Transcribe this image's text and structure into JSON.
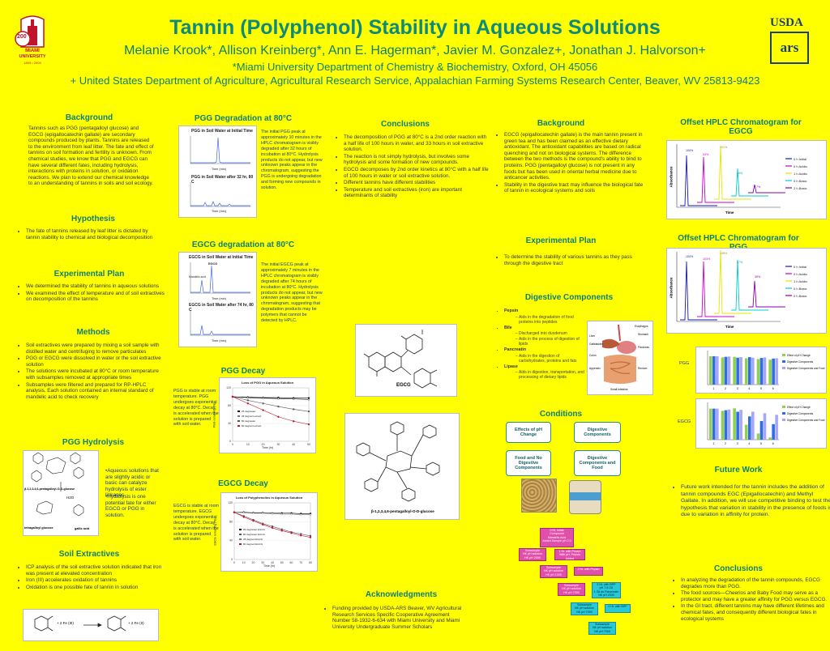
{
  "header": {
    "title": "Tannin (Polyphenol) Stability in Aqueous Solutions",
    "authors": "Melanie Krook*, Allison Kreinberg*, Ann E. Hagerman*, Javier M. Gonzalez+, Jonathan J. Halvorson+",
    "affiliation1": "*Miami University Department of Chemistry & Biochemistry, Oxford, OH   45056",
    "affiliation2": "+ United States Department of Agriculture, Agricultural Research Service, Appalachian Farming Systems Research Center, Beaver, WV 25813-9423",
    "left_logo": {
      "line1": "200",
      "line2": "MIAMI",
      "line3": "UNIVERSITY",
      "line4": "1809 • 2009"
    },
    "right_logo": {
      "top": "USDA",
      "bottom": "ars"
    }
  },
  "col1": {
    "background": {
      "heading": "Background",
      "text": "Tannins such as PGG (pentagalloyl glucose) and EGCG (epigallocatechin gallate) are secondary compounds produced by plants. Tannins are released to the environment from leaf litter.  The fate and effect of tannins on soil formation and fertility is unknown.  From chemical studies, we know that PGG and EGCG can have several different fates, including hydrolysis, interactions with proteins in solution, or oxidation reactions.  We plan to extend our chemical knowledge to an understanding of tannins in soils and soil ecology."
    },
    "hypothesis": {
      "heading": "Hypothesis",
      "bullets": [
        "The fate of tannins released by leaf litter is dictated by tannin stability to chemical and biological decomposition"
      ]
    },
    "experimental": {
      "heading": "Experimental Plan",
      "bullets": [
        "We determined the stability of tannins in aqueous solutions",
        "We examined the effect of temperature and of soil extractives on decomposition of the tannins"
      ]
    },
    "methods": {
      "heading": "Methods",
      "bullets": [
        "Soil extractives were prepared by mixing a soil sample with distilled water and centrifuging to remove particulates",
        "PGG or EGCG were dissolved in water or the soil extractive solution",
        "The solutions were incubated at 80°C or room temperature with subsamples removed at appropriate times",
        "Subsamples were filtered and prepared for RP-HPLC analysis.  Each solution contained an internal standard of mandelic acid to check recovery"
      ]
    },
    "hydrolysis": {
      "heading": "PGG  Hydrolysis",
      "label_pgg": "β-1,2,3,4,6-pentagalloyl-O-D-glucose",
      "label_h2o": "H2O",
      "label_glucose": "tetragalloyl glucose",
      "label_gallic": "gallic acid",
      "notes": [
        "•Aqueous solutions that are slightly acidic or basic can catalyze hydrolysis of ester linkages",
        "•Hydrolysis is one potential fate for either EGCG or PGG in solution."
      ]
    },
    "soil": {
      "heading": "Soil Extractives",
      "bullets": [
        "ICP analysis of the soil extractive solution indicated that iron was present at elevated concentration",
        "Iron (III) accelerates oxidation of tannins",
        "Oxidation is one possible fate of tannin in solution"
      ],
      "reaction_left": "+ 2 Fe (III)",
      "reaction_right": "+ 2 Fe (II)"
    }
  },
  "col2": {
    "pgg_degradation": {
      "heading": "PGG Degradation at 80°C",
      "fig_top_title": "PGG in Soil Water at Initial Time",
      "fig_bottom_title": "PGG in Soil Water after 32 hr, 80 C",
      "axis_time": "Time (min)",
      "text": "The initial PGG peak at approximately 10 minutes in the HPLC chromatogram is visibly degraded after 32 hours of incubation at 80°C. Hydrolysis products do not appear, but new unknown peaks appear in the chromatogram, suggesting the PGG is undergoing degradation and forming new compounds in solution."
    },
    "egcg_degradation": {
      "heading": "EGCG degradation at 80°C",
      "fig_top_title": "EGCG in Soil Water at Initial Time",
      "fig_bottom_title": "EGCG in Soil Water after 74 hr, 80 C",
      "peak_egcg": "EGCG",
      "peak_std": "Mandelic acid",
      "axis_time": "Time (min)",
      "text": "The initial EGCG peak at approximately 7 minutes in the HPLC chromatogram is visibly degraded after 74 hours of incubation at 80°C. Hydrolysis products do not appear, but new unknown peaks appear in the chromatogram, suggesting that degradation products may be polymers that cannot be detected by HPLC."
    },
    "pgg_decay": {
      "heading": "PGG Decay",
      "text": "PGG is stable at room temperature. PGG undergoes exponential decay at 80°C.  Decay is accelerated when the solution is prepared with soil water.",
      "chart_title": "Loss of PGG in Aqueous Solution",
      "ylabel": "PGG remaining (%)",
      "xlabel": "Time (hr)",
      "legend": [
        "25 deg/water",
        "25 deg/soil extract",
        "80 deg/water",
        "80 deg/soil extract"
      ]
    },
    "egcg_decay": {
      "heading": "EGCG Decay",
      "text": "EGCG is stable at room temperature. EGCG undergoes exponential decay at 80°C.  Decay is accelerated when the solution is prepared with soil water.",
      "chart_title": "Loss of Polyphenolics in Aqueous Solution",
      "ylabel": "EGCG remaining (%)",
      "xlabel": "Time (hr)",
      "legend": [
        "25 deg/water EGCG",
        "80 deg/water EGCG",
        "25 deg/soil EGCG",
        "80 deg/soil EGCG"
      ]
    }
  },
  "col3": {
    "conclusions": {
      "heading": "Conclusions",
      "bullets": [
        "The decomposition of PGG at 80°C is a 2nd order reaction with a half life of 100 hours in water, and 33 hours in soil extractive solution.",
        "The reaction is not simply hydrolysis, but involves some hydrolysis and some formation of new compounds.",
        "EGCG decomposes by 2nd order kinetics at 80°C with a half life of 100 hours in water or soil extractive solution.",
        "Different tannins have different stabilities",
        "Temperature and soil extractives (iron) are important determinants of stability"
      ]
    },
    "egcg_label": "EGCG",
    "pgg_label": "β-1,2,3,4,6-pentagalloyl-O-D-glucose",
    "ack": {
      "heading": "Acknowledgments",
      "bullets": [
        "Funding provided by USDA-ARS Beaver, WV Agricultural Research Services Specific Cooperative Agreement Number 58-1932-6-634 with Miami University and Miami University Undergraduate Summer Scholars"
      ]
    }
  },
  "col4": {
    "background": {
      "heading": "Background",
      "bullets": [
        "EGCG (epigallocatechin gallate) is the main tannin present in green tea and has been claimed as an effective dietary antioxidant.   The antioxidant capabilities are based on radical quenching  and not on biological systems.  The difference between the two methods is the compound's ability to bind to proteins.  PGG (pentagalloyl glucose) is not present in any foods but has been used in oriental herbal medicine due to anticancer activities.",
        "Stability in the digestive tract may influence the biological fate of tannin in ecological systems and soils"
      ]
    },
    "experimental": {
      "heading": "Experimental Plan",
      "bullets": [
        "To determine the stability of various tannins as they pass through the digestive tract"
      ]
    },
    "digestive": {
      "heading": "Digestive Components",
      "items": [
        {
          "name": "Pepsin",
          "subs": [
            "Aids in the degradation of food proteins into peptides"
          ]
        },
        {
          "name": "Bile",
          "subs": [
            "Discharged into duodenum",
            "Aids in the process of digestion of lipids"
          ]
        },
        {
          "name": "Pancreatin",
          "subs": [
            "Aids in the digestion of carbohydrates, proteins and fats"
          ]
        },
        {
          "name": "Lipase",
          "subs": [
            "Aids in digestion, transportation, and processing of dietary lipids"
          ]
        }
      ],
      "organs": [
        "Esophagus",
        "Liver",
        "Stomach",
        "Gallbladder",
        "Pancreas",
        "Colon",
        "Appendix",
        "Rectum",
        "Small Intestine"
      ]
    },
    "conditions": {
      "heading": "Conditions",
      "boxes": [
        "Effects of pH Change",
        "Digestive Components",
        "Food and No Digestive Components",
        "Digestive Components and Food"
      ]
    },
    "flow": {
      "top": [
        "0 Hr, Initial",
        "Compound",
        "Mandelic Acid",
        "Added Sample pH 2.0"
      ],
      "row2_left": [
        "Subsample",
        "HK pH solution",
        "HK pH 2000"
      ],
      "row2_right": [
        "1 Hr. with Pepsin",
        "With pH, Pepsin Added"
      ],
      "row3_left": [
        "Subsample",
        "NK pH solution",
        "HK pH 1000"
      ],
      "row3_right": [
        "2 Hr. with Pepsin"
      ],
      "row4_left": [
        "Subsample",
        "HK pH solution",
        "HK pH 7000"
      ],
      "row4_right": [
        "3 Hr. with BPP",
        "pH 7.5 OK",
        "1 Gk as Pancreatin",
        "NK pH 2000"
      ],
      "row5_left": [
        "Subsample",
        "NK pH solution",
        "NK pH 7000"
      ],
      "row5_right": [
        "4 Hr. with BPP"
      ],
      "row6": [
        "Subsample",
        "NK pH solution",
        "NK pH 7000"
      ]
    }
  },
  "col5": {
    "offset_egcg": {
      "heading": "Offset HPLC Chromatogram for EGCG",
      "ylabel": "Absorbance",
      "xlabel": "Time",
      "peaks": [
        "100%",
        "93%",
        "101%",
        "48%",
        "7%"
      ]
    },
    "offset_pgg": {
      "heading": "Offset HPLC Chromatogram for PGG",
      "ylabel": "Absorbance",
      "xlabel": "Time",
      "peaks": [
        "100%",
        "103%",
        "108%",
        "87%",
        "39%"
      ]
    },
    "legend": [
      "0 h Initial",
      "0 h Acidic",
      "1 h Acidic",
      "0 h Basic",
      "2 h Basic"
    ],
    "series_colors": [
      "#1a1aa6",
      "#cc00cc",
      "#e6e600",
      "#00cccc",
      "#8800aa"
    ],
    "bar_label_pgg": "PGG",
    "bar_label_egcg": "EGCG",
    "bar_legend": [
      "Effect of pH Change",
      "Digestive Components",
      "Digestive Components and Food"
    ],
    "bar_colors": [
      "#8fd14f",
      "#2f6de8",
      "#a6a6ff"
    ],
    "future": {
      "heading": "Future Work",
      "bullets": [
        "Future work intended for the tannin includes the addition of tannin compounds EGC (Epigallocatechin) and Methyl Gallate. In addition, we will use competitive binding to test the hypothesis that variation in stability in the presence of foods is due to variation in affinity for protein."
      ]
    },
    "conclusions": {
      "heading": "Conclusions",
      "bullets": [
        "In analyzing the degradation of the tannin compounds, EGCG degrades more than PGG.",
        "The food sources—Cheerios and Baby Food may serve as a protector and may have a greater affinity for PGG versus EGCG.",
        "In the GI tract, different tannins may have different lifetimes and chemical fates, and consequently different biological fates in ecological systems"
      ]
    }
  },
  "chart_data": [
    {
      "type": "line",
      "title": "Loss of PGG in Aqueous Solution",
      "xlabel": "Time (hr)",
      "ylabel": "PGG remaining (%)",
      "x": [
        0,
        10,
        20,
        30,
        40,
        50
      ],
      "ylim": [
        0,
        120
      ],
      "series": [
        {
          "name": "25 deg/water",
          "values": [
            100,
            99,
            98,
            98,
            97,
            97
          ]
        },
        {
          "name": "25 deg/soil extract",
          "values": [
            100,
            98,
            97,
            96,
            95,
            94
          ]
        },
        {
          "name": "80 deg/water",
          "values": [
            100,
            92,
            85,
            78,
            72,
            67
          ]
        },
        {
          "name": "80 deg/soil extract",
          "values": [
            100,
            85,
            70,
            55,
            45,
            38
          ]
        }
      ]
    },
    {
      "type": "line",
      "title": "Loss of Polyphenolics in Aqueous Solution",
      "xlabel": "Time (hr)",
      "ylabel": "EGCG remaining (%)",
      "x": [
        0,
        10,
        20,
        30,
        40,
        50,
        60,
        70,
        80
      ],
      "ylim": [
        0,
        120
      ],
      "series": [
        {
          "name": "25 deg/water EGCG",
          "values": [
            100,
            100,
            99,
            99,
            98,
            98,
            98,
            97,
            97
          ]
        },
        {
          "name": "80 deg/water EGCG",
          "values": [
            100,
            92,
            84,
            76,
            70,
            64,
            58,
            54,
            50
          ]
        },
        {
          "name": "25 deg/soil EGCG",
          "values": [
            100,
            99,
            98,
            98,
            97,
            96,
            96,
            95,
            95
          ]
        },
        {
          "name": "80 deg/soil EGCG",
          "values": [
            100,
            90,
            82,
            74,
            67,
            61,
            56,
            51,
            47
          ]
        }
      ]
    },
    {
      "type": "bar",
      "title": "",
      "ylabel": "% remaining",
      "categories": [
        "1",
        "2",
        "3",
        "4",
        "5",
        "6"
      ],
      "ylim": [
        0,
        120
      ],
      "series": [
        {
          "name": "Effect of pH Change",
          "values": [
            100,
            96,
            98,
            93,
            90,
            88
          ]
        },
        {
          "name": "Digestive Components",
          "values": [
            100,
            98,
            95,
            97,
            94,
            92
          ]
        },
        {
          "name": "Digestive Components and Food",
          "values": [
            100,
            99,
            97,
            95,
            96,
            93
          ]
        }
      ]
    },
    {
      "type": "bar",
      "title": "",
      "ylabel": "% remaining",
      "categories": [
        "1",
        "2",
        "3",
        "4",
        "5",
        "6"
      ],
      "ylim": [
        0,
        120
      ],
      "series": [
        {
          "name": "Effect of pH Change",
          "values": [
            100,
            93,
            101,
            48,
            20,
            7
          ]
        },
        {
          "name": "Digestive Components",
          "values": [
            100,
            95,
            90,
            75,
            60,
            50
          ]
        },
        {
          "name": "Digestive Components and Food",
          "values": [
            100,
            97,
            96,
            90,
            85,
            80
          ]
        }
      ]
    }
  ]
}
